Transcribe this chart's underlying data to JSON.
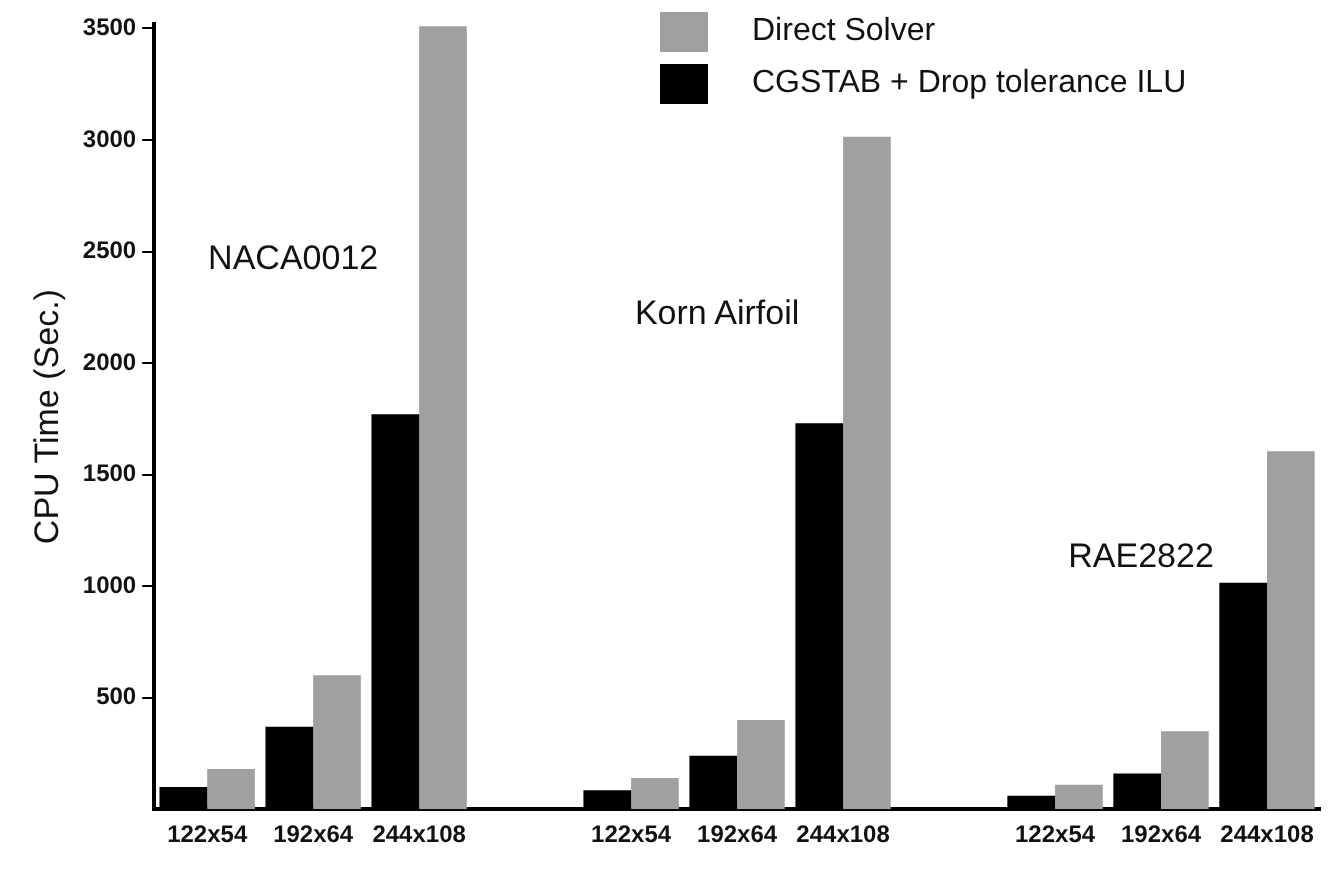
{
  "chart_data": {
    "type": "bar",
    "ylabel": "CPU Time (Sec.)",
    "categories": [
      "122x54",
      "192x64",
      "244x108",
      null,
      "122x54",
      "192x64",
      "244x108",
      null,
      "122x54",
      "192x64",
      "244x108"
    ],
    "series": [
      {
        "name": "CGSTAB + Drop tolerance ILU",
        "color": "#000000",
        "values": [
          100,
          370,
          1770,
          null,
          85,
          240,
          1730,
          null,
          60,
          160,
          1015
        ]
      },
      {
        "name": "Direct Solver",
        "color": "#a0a0a0",
        "values": [
          180,
          600,
          3510,
          null,
          140,
          400,
          3015,
          null,
          110,
          350,
          1605
        ]
      }
    ],
    "ylim": [
      0,
      3520
    ],
    "yticks": [
      500,
      1000,
      1500,
      2000,
      2500,
      3000,
      3500
    ],
    "annotations": [
      "NACA0012",
      "Korn Airfoil",
      "RAE2822"
    ],
    "legend": "top right",
    "grid": false
  }
}
